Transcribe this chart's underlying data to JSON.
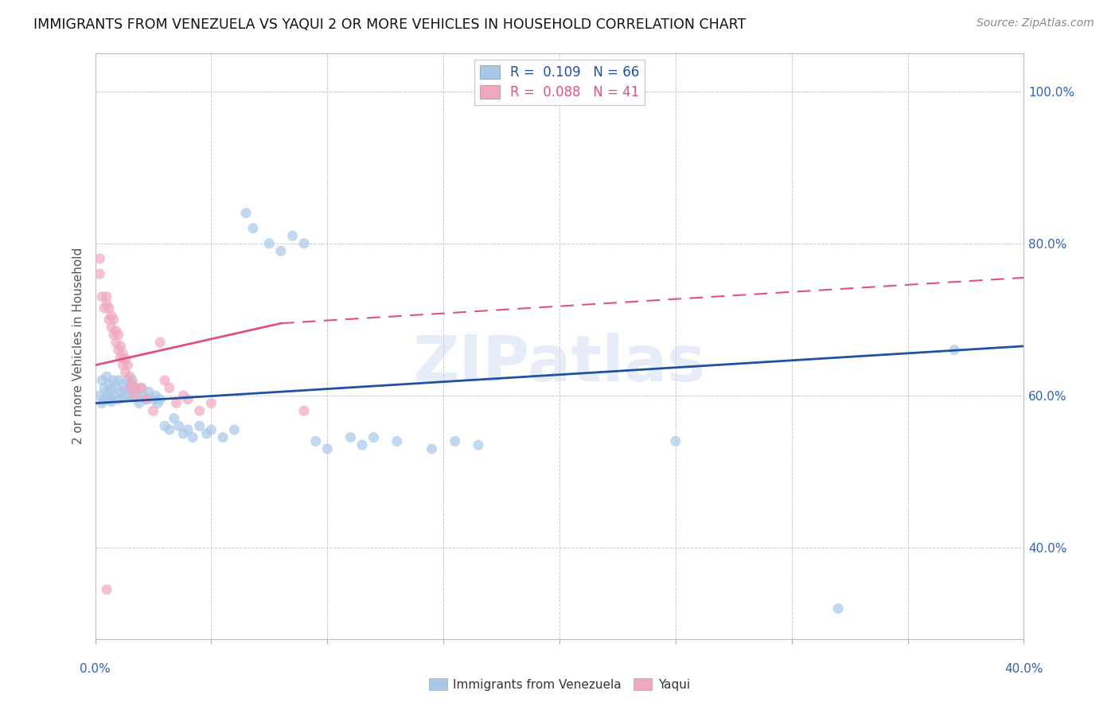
{
  "title": "IMMIGRANTS FROM VENEZUELA VS YAQUI 2 OR MORE VEHICLES IN HOUSEHOLD CORRELATION CHART",
  "source": "Source: ZipAtlas.com",
  "ylabel": "2 or more Vehicles in Household",
  "legend1_label": "Immigrants from Venezuela",
  "legend2_label": "Yaqui",
  "R1": "0.109",
  "N1": "66",
  "R2": "0.088",
  "N2": "41",
  "color_blue": "#a8c8e8",
  "color_pink": "#f0a8c0",
  "color_blue_line": "#2050a0",
  "color_pink_line": "#e05080",
  "xlim": [
    0.0,
    0.4
  ],
  "ylim": [
    0.28,
    1.05
  ],
  "x_ticks": [
    0.0,
    0.05,
    0.1,
    0.15,
    0.2,
    0.25,
    0.3,
    0.35,
    0.4
  ],
  "y_ticks": [
    0.4,
    0.6,
    0.8,
    1.0
  ],
  "blue_scatter": [
    [
      0.002,
      0.6
    ],
    [
      0.003,
      0.62
    ],
    [
      0.003,
      0.59
    ],
    [
      0.004,
      0.61
    ],
    [
      0.004,
      0.595
    ],
    [
      0.005,
      0.625
    ],
    [
      0.005,
      0.605
    ],
    [
      0.006,
      0.615
    ],
    [
      0.006,
      0.598
    ],
    [
      0.007,
      0.608
    ],
    [
      0.007,
      0.592
    ],
    [
      0.008,
      0.62
    ],
    [
      0.008,
      0.6
    ],
    [
      0.009,
      0.61
    ],
    [
      0.01,
      0.62
    ],
    [
      0.01,
      0.595
    ],
    [
      0.011,
      0.605
    ],
    [
      0.012,
      0.598
    ],
    [
      0.012,
      0.615
    ],
    [
      0.013,
      0.607
    ],
    [
      0.014,
      0.62
    ],
    [
      0.014,
      0.598
    ],
    [
      0.015,
      0.61
    ],
    [
      0.016,
      0.62
    ],
    [
      0.016,
      0.598
    ],
    [
      0.017,
      0.61
    ],
    [
      0.018,
      0.6
    ],
    [
      0.019,
      0.59
    ],
    [
      0.02,
      0.61
    ],
    [
      0.021,
      0.6
    ],
    [
      0.022,
      0.595
    ],
    [
      0.023,
      0.605
    ],
    [
      0.025,
      0.595
    ],
    [
      0.026,
      0.6
    ],
    [
      0.027,
      0.59
    ],
    [
      0.028,
      0.595
    ],
    [
      0.03,
      0.56
    ],
    [
      0.032,
      0.555
    ],
    [
      0.034,
      0.57
    ],
    [
      0.036,
      0.56
    ],
    [
      0.038,
      0.55
    ],
    [
      0.04,
      0.555
    ],
    [
      0.042,
      0.545
    ],
    [
      0.045,
      0.56
    ],
    [
      0.048,
      0.55
    ],
    [
      0.05,
      0.555
    ],
    [
      0.055,
      0.545
    ],
    [
      0.06,
      0.555
    ],
    [
      0.065,
      0.84
    ],
    [
      0.068,
      0.82
    ],
    [
      0.075,
      0.8
    ],
    [
      0.08,
      0.79
    ],
    [
      0.085,
      0.81
    ],
    [
      0.09,
      0.8
    ],
    [
      0.095,
      0.54
    ],
    [
      0.1,
      0.53
    ],
    [
      0.11,
      0.545
    ],
    [
      0.115,
      0.535
    ],
    [
      0.12,
      0.545
    ],
    [
      0.13,
      0.54
    ],
    [
      0.145,
      0.53
    ],
    [
      0.155,
      0.54
    ],
    [
      0.165,
      0.535
    ],
    [
      0.25,
      0.54
    ],
    [
      0.32,
      0.32
    ],
    [
      0.37,
      0.66
    ]
  ],
  "pink_scatter": [
    [
      0.002,
      0.78
    ],
    [
      0.002,
      0.76
    ],
    [
      0.003,
      0.73
    ],
    [
      0.004,
      0.715
    ],
    [
      0.005,
      0.73
    ],
    [
      0.005,
      0.72
    ],
    [
      0.006,
      0.7
    ],
    [
      0.006,
      0.715
    ],
    [
      0.007,
      0.705
    ],
    [
      0.007,
      0.69
    ],
    [
      0.008,
      0.7
    ],
    [
      0.008,
      0.68
    ],
    [
      0.009,
      0.685
    ],
    [
      0.009,
      0.67
    ],
    [
      0.01,
      0.68
    ],
    [
      0.01,
      0.66
    ],
    [
      0.011,
      0.665
    ],
    [
      0.011,
      0.65
    ],
    [
      0.012,
      0.655
    ],
    [
      0.012,
      0.64
    ],
    [
      0.013,
      0.648
    ],
    [
      0.013,
      0.63
    ],
    [
      0.014,
      0.64
    ],
    [
      0.015,
      0.625
    ],
    [
      0.015,
      0.61
    ],
    [
      0.016,
      0.615
    ],
    [
      0.017,
      0.6
    ],
    [
      0.018,
      0.61
    ],
    [
      0.02,
      0.61
    ],
    [
      0.022,
      0.595
    ],
    [
      0.025,
      0.58
    ],
    [
      0.028,
      0.67
    ],
    [
      0.03,
      0.62
    ],
    [
      0.032,
      0.61
    ],
    [
      0.035,
      0.59
    ],
    [
      0.038,
      0.6
    ],
    [
      0.04,
      0.595
    ],
    [
      0.045,
      0.58
    ],
    [
      0.05,
      0.59
    ],
    [
      0.09,
      0.58
    ],
    [
      0.005,
      0.345
    ]
  ],
  "blue_line": [
    [
      0.0,
      0.59
    ],
    [
      0.4,
      0.665
    ]
  ],
  "pink_line_solid": [
    [
      0.0,
      0.64
    ],
    [
      0.08,
      0.695
    ]
  ],
  "pink_line_dashed": [
    [
      0.08,
      0.695
    ],
    [
      0.4,
      0.755
    ]
  ]
}
